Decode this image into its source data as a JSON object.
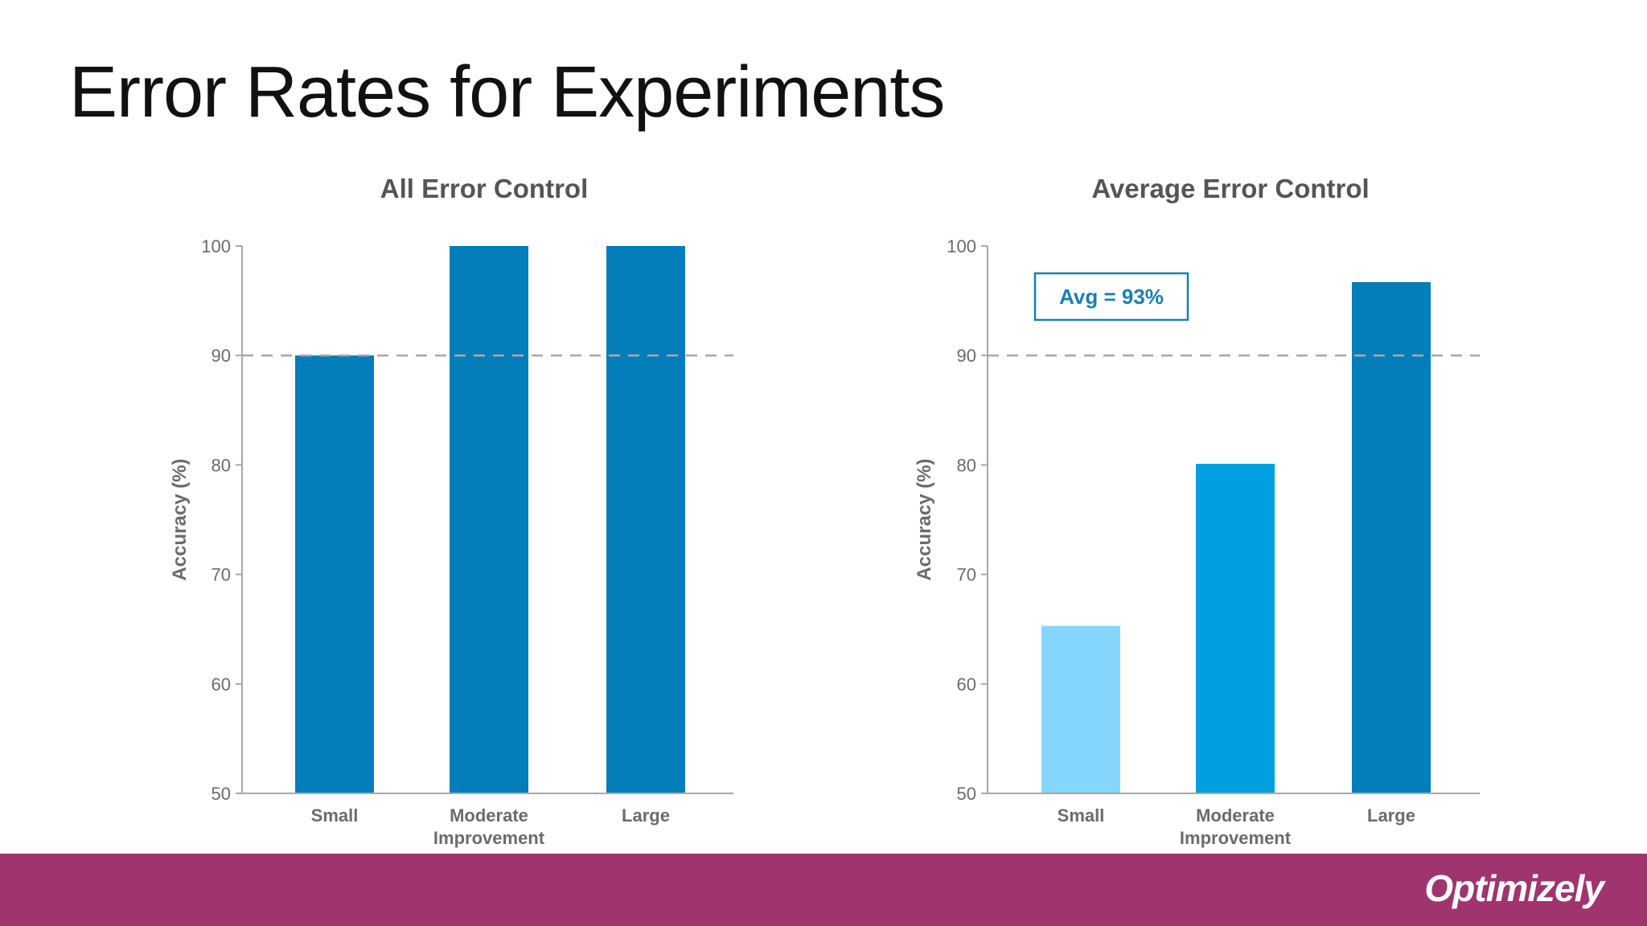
{
  "slide": {
    "title": "Error Rates for Experiments",
    "footer_color": "#a0346e",
    "brand": "Optimizely"
  },
  "chart_data": [
    {
      "type": "bar",
      "title": "All Error Control",
      "xlabel": "",
      "ylabel": "Accuracy (%)",
      "ylim": [
        50,
        100
      ],
      "yticks": [
        50,
        60,
        70,
        80,
        90,
        100
      ],
      "categories": [
        "Small",
        "Moderate Improvement",
        "Large"
      ],
      "values": [
        90,
        100,
        100
      ],
      "bar_colors": [
        "#047dbb",
        "#047dbb",
        "#047dbb"
      ],
      "reference_line": {
        "value": 90,
        "style": "dashed"
      },
      "annotation": null
    },
    {
      "type": "bar",
      "title": "Average Error Control",
      "xlabel": "",
      "ylabel": "Accuracy (%)",
      "ylim": [
        50,
        100
      ],
      "yticks": [
        50,
        60,
        70,
        80,
        90,
        100
      ],
      "categories": [
        "Small",
        "Moderate Improvement",
        "Large"
      ],
      "values": [
        65.3,
        80.1,
        96.7
      ],
      "bar_colors": [
        "#85d6fd",
        "#00a0e0",
        "#047dbb"
      ],
      "reference_line": {
        "value": 90,
        "style": "dashed"
      },
      "annotation": {
        "text": "Avg = 93%",
        "color": "#1a7fb0"
      }
    }
  ]
}
